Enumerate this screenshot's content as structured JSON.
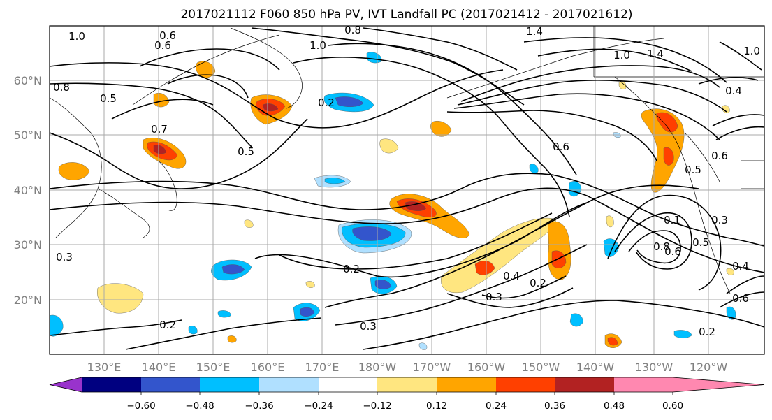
{
  "title": "2017021112 F060 850 hPa PV, IVT Landfall PC (2017021412 - 2017021612)",
  "lat_labels": [
    "60°N",
    "50°N",
    "40°N",
    "30°N",
    "20°N"
  ],
  "lon_labels": [
    "130°E",
    "140°E",
    "150°E",
    "160°E",
    "170°E",
    "180°W",
    "170°W",
    "160°W",
    "150°W",
    "140°W",
    "130°W",
    "120°W"
  ],
  "colorbar": {
    "ticks": [
      "−0.60",
      "−0.48",
      "−0.36",
      "−0.24",
      "−0.12",
      "0.12",
      "0.24",
      "0.36",
      "0.48",
      "0.60"
    ],
    "colors": [
      "#9933cc",
      "#000080",
      "#3355cc",
      "#00bfff",
      "#b0e0ff",
      "#ffffff",
      "#ffe680",
      "#ffa500",
      "#ff4000",
      "#b22222",
      "#ff88b0"
    ]
  },
  "contour_labels": [
    "1.0",
    "0.6",
    "0.8",
    "0.6",
    "1.0",
    "1.4",
    "1.4",
    "1.0",
    "1.0",
    "0.8",
    "0.5",
    "0.7",
    "0.2",
    "0.5",
    "0.6",
    "0.4",
    "0.5",
    "0.6",
    "0.3",
    "0.2",
    "0.4",
    "0.3",
    "0.2",
    "0.3",
    "0.2",
    "0.8",
    "0.6",
    "0.5",
    "0.4",
    "0.6",
    "0.2",
    "0.1",
    "0.3"
  ]
}
